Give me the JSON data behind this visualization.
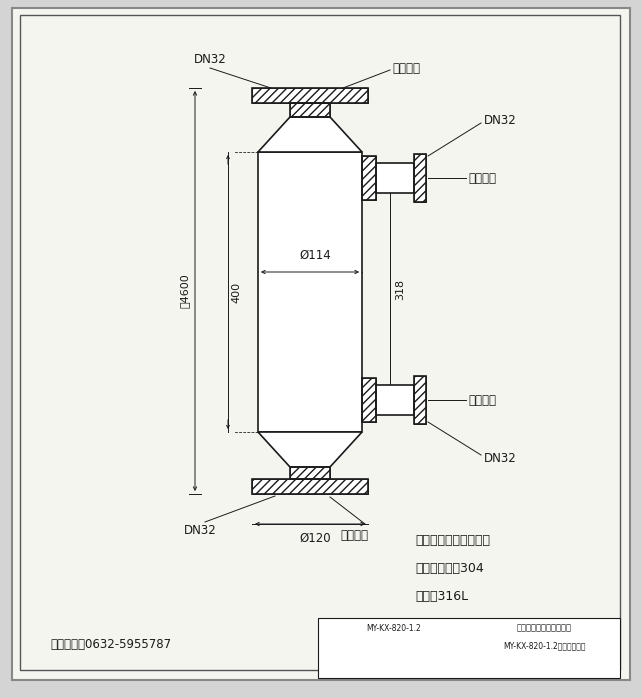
{
  "bg_color": "#d4d4d4",
  "paper_color": "#f8f8f5",
  "line_color": "#1a1a1a",
  "annotations": {
    "hot_in_label": "热媒进口",
    "hot_out_label": "热媒出口",
    "cold_out_label": "冷媒出口",
    "cold_in_label": "冷媒进口",
    "dn32": "DN32",
    "dim_600": "剠4600",
    "dim_400": "400",
    "dim_318": "318",
    "dim_114": "Ø114",
    "dim_120": "Ø120",
    "note1": "注：四件法兰外径相同",
    "note2": "材质：壳体，304",
    "note3": "内管：316L",
    "hotline": "密友热线：0632-5955787",
    "title_block": "MY-KX-820-1.2换热器示意图",
    "company": "夏州市密友机械有限公司"
  }
}
